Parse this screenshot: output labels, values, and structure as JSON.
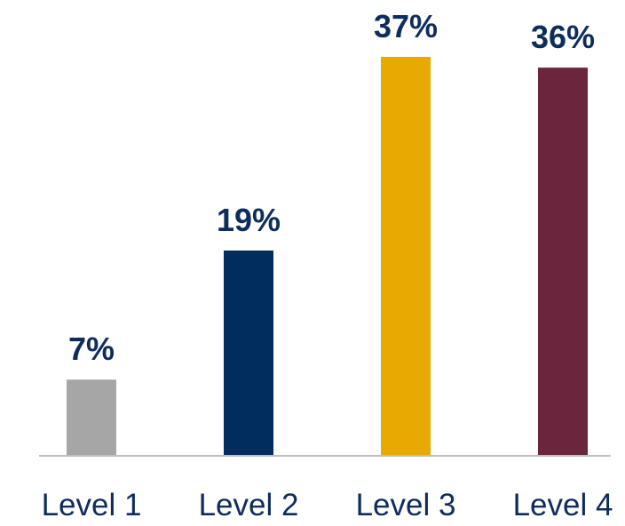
{
  "chart_data": {
    "type": "bar",
    "categories": [
      "Level 1",
      "Level 2",
      "Level 3",
      "Level 4"
    ],
    "values": [
      7,
      19,
      37,
      36
    ],
    "value_labels": [
      "7%",
      "19%",
      "37%",
      "36%"
    ],
    "colors": [
      "#a6a6a6",
      "#002d5e",
      "#e8aa00",
      "#6b263e"
    ],
    "label_color": "#0d2d5c",
    "axis_color": "#bfbfbf",
    "title": "",
    "xlabel": "",
    "ylabel": "",
    "ylim": [
      0,
      37
    ],
    "grid": false,
    "legend": "none"
  }
}
